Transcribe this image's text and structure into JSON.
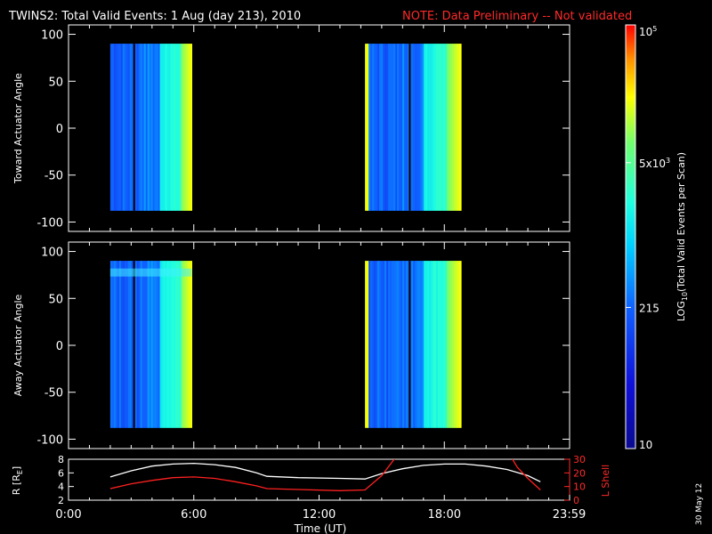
{
  "header": {
    "title": "TWINS2: Total Valid Events:  1 Aug (day 213), 2010",
    "note": "NOTE: Data Preliminary -- Not validated",
    "note_color": "#ff2a2a"
  },
  "footer": {
    "date_stamp": "30 May 12"
  },
  "chart_data": [
    {
      "type": "heatmap",
      "panel": "toward",
      "ylabel": "Toward Actuator Angle",
      "ylim": [
        -110,
        110
      ],
      "yticks": [
        100,
        50,
        0,
        -50,
        -100
      ],
      "xlim": [
        0,
        24
      ],
      "data_windows_hours": [
        [
          2.0,
          5.9
        ],
        [
          14.2,
          18.8
        ]
      ],
      "scan_angle_range": [
        -88,
        90
      ]
    },
    {
      "type": "heatmap",
      "panel": "away",
      "ylabel": "Away Actuator Angle",
      "ylim": [
        -110,
        110
      ],
      "yticks": [
        100,
        50,
        0,
        -50,
        -100
      ],
      "xlim": [
        0,
        24
      ],
      "data_windows_hours": [
        [
          2.0,
          5.9
        ],
        [
          14.2,
          18.8
        ]
      ],
      "scan_angle_range": [
        -88,
        90
      ],
      "bright_band_angle": 78
    },
    {
      "type": "line",
      "panel": "orbit",
      "ylabel_left": "R [R",
      "ylabel_left_sub": "E",
      "ylabel_left_end": "]",
      "ylabel_right": "L Shell",
      "ylim_left": [
        2,
        8
      ],
      "yticks_left": [
        "8",
        "6",
        "4",
        "2"
      ],
      "ylim_right": [
        0,
        30
      ],
      "yticks_right": [
        "30",
        "20",
        "10",
        "0"
      ],
      "xlabel": "Time (UT)",
      "xticks": [
        "0:00",
        "6:00",
        "12:00",
        "18:00",
        "23:59"
      ],
      "xtick_hours": [
        0,
        6,
        12,
        18,
        23.98
      ],
      "series": [
        {
          "color": "#ffffff",
          "axis": "left",
          "x": [
            2.0,
            3.0,
            4.0,
            5.0,
            6.0,
            7.0,
            8.0,
            9.0,
            9.5,
            11.0,
            13.0,
            14.2,
            15.0,
            16.0,
            17.0,
            18.0,
            19.0,
            20.0,
            21.0,
            22.0,
            22.6
          ],
          "y": [
            5.4,
            6.3,
            7.0,
            7.3,
            7.4,
            7.2,
            6.8,
            6.0,
            5.5,
            5.3,
            5.2,
            5.1,
            5.9,
            6.6,
            7.1,
            7.3,
            7.3,
            7.0,
            6.5,
            5.6,
            4.7
          ]
        },
        {
          "color": "#ff2020",
          "axis": "right",
          "x": [
            2.0,
            3.0,
            4.0,
            5.0,
            6.0,
            7.0,
            8.0,
            9.0,
            9.5,
            11.0,
            13.0,
            14.2,
            15.0,
            15.5,
            15.8
          ],
          "y": [
            8.5,
            12.0,
            14.5,
            16.5,
            17.0,
            16.0,
            13.5,
            10.5,
            8.5,
            7.8,
            7.0,
            7.5,
            18.0,
            28.0,
            34.0
          ]
        },
        {
          "color": "#ff2020",
          "axis": "right",
          "x": [
            21.1,
            21.5,
            22.0,
            22.6
          ],
          "y": [
            34.0,
            24.0,
            16.0,
            7.5
          ]
        }
      ]
    },
    {
      "type": "colorbar",
      "ylabel": "LOG10(Total Valid Events per Scan)",
      "label_parts": [
        "LOG",
        "10",
        "(Total Valid Events per Scan)"
      ],
      "range": [
        10,
        100000
      ],
      "scale": "log",
      "tick_labels": [
        {
          "value": 100000,
          "base": "10",
          "sup": "5",
          "sub": ""
        },
        {
          "value": 5000,
          "base": "5x10",
          "sup": "3",
          "sub": ""
        },
        {
          "value": 215,
          "base": "215",
          "sup": "",
          "sub": ""
        },
        {
          "value": 10,
          "base": "10",
          "sup": "",
          "sub": ""
        }
      ]
    }
  ]
}
